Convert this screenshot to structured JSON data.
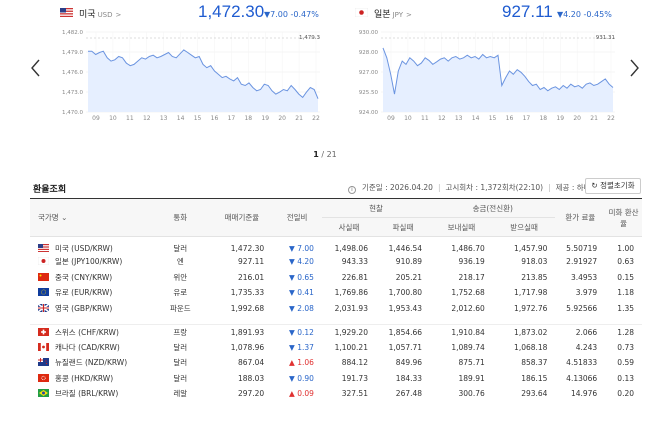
{
  "carousel": {
    "pager_current": "1",
    "pager_total": "/ 21"
  },
  "cards": [
    {
      "name": "미국",
      "code": "USD",
      "price": "1,472.30",
      "change": "▼7.00",
      "change_pct": "-0.47%",
      "y_ticks": [
        "1,482.0",
        "1,479.0",
        "1,476.0",
        "1,473.0",
        "1,470.0"
      ],
      "x_ticks": [
        "09",
        "10",
        "11",
        "12",
        "13",
        "14",
        "15",
        "16",
        "17",
        "18",
        "19",
        "20",
        "21",
        "22"
      ],
      "max_label": "1,479.3"
    },
    {
      "name": "일본",
      "code": "JPY",
      "price": "927.11",
      "change": "▼4.20",
      "change_pct": "-0.45%",
      "y_ticks": [
        "930.00",
        "928.00",
        "927.00",
        "925.50",
        "924.00"
      ],
      "x_ticks": [
        "09",
        "10",
        "11",
        "12",
        "13",
        "14",
        "15",
        "16",
        "17",
        "18",
        "19",
        "20",
        "21",
        "22"
      ],
      "max_label": "931.31"
    }
  ],
  "section": {
    "title": "환율조회",
    "base_date": "기준일 : 2026.04.20",
    "notice": "고시회차 : 1,372회차(22:10)",
    "provider": "제공 : 하나은행",
    "reset_label": "정렬초기화"
  },
  "table": {
    "headers": {
      "country": "국가명",
      "currency": "통화",
      "base_rate": "매매기준율",
      "change": "전일비",
      "cash": "현찰",
      "cash_buy": "사실때",
      "cash_sell": "파실때",
      "transfer": "송금(전신환)",
      "send": "보내실때",
      "receive": "받으실때",
      "usd_rate": "환가 료율",
      "usd_conv": "미화 환산율"
    },
    "rows": [
      {
        "name": "미국 (USD/KRW)",
        "currency": "달러",
        "base": "1,472.30",
        "change": "7.00",
        "dir": "down",
        "cash_buy": "1,498.06",
        "cash_sell": "1,446.54",
        "send": "1,486.70",
        "receive": "1,457.90",
        "fee": "5.50719",
        "usd": "1.00",
        "flag": "us"
      },
      {
        "name": "일본 (JPY100/KRW)",
        "currency": "엔",
        "base": "927.11",
        "change": "4.20",
        "dir": "down",
        "cash_buy": "943.33",
        "cash_sell": "910.89",
        "send": "936.19",
        "receive": "918.03",
        "fee": "2.91927",
        "usd": "0.63",
        "flag": "jp"
      },
      {
        "name": "중국 (CNY/KRW)",
        "currency": "위안",
        "base": "216.01",
        "change": "0.65",
        "dir": "down",
        "cash_buy": "226.81",
        "cash_sell": "205.21",
        "send": "218.17",
        "receive": "213.85",
        "fee": "3.4953",
        "usd": "0.15",
        "flag": "cn"
      },
      {
        "name": "유로 (EUR/KRW)",
        "currency": "유로",
        "base": "1,735.33",
        "change": "0.41",
        "dir": "down",
        "cash_buy": "1,769.86",
        "cash_sell": "1,700.80",
        "send": "1,752.68",
        "receive": "1,717.98",
        "fee": "3.979",
        "usd": "1.18",
        "flag": "eu"
      },
      {
        "name": "영국 (GBP/KRW)",
        "currency": "파운드",
        "base": "1,992.68",
        "change": "2.08",
        "dir": "down",
        "cash_buy": "2,031.93",
        "cash_sell": "1,953.43",
        "send": "2,012.60",
        "receive": "1,972.76",
        "fee": "5.92566",
        "usd": "1.35",
        "flag": "gb"
      },
      {
        "name": "스위스 (CHF/KRW)",
        "currency": "프랑",
        "base": "1,891.93",
        "change": "0.12",
        "dir": "down",
        "cash_buy": "1,929.20",
        "cash_sell": "1,854.66",
        "send": "1,910.84",
        "receive": "1,873.02",
        "fee": "2.066",
        "usd": "1.28",
        "flag": "ch"
      },
      {
        "name": "캐나다 (CAD/KRW)",
        "currency": "달러",
        "base": "1,078.96",
        "change": "1.37",
        "dir": "down",
        "cash_buy": "1,100.21",
        "cash_sell": "1,057.71",
        "send": "1,089.74",
        "receive": "1,068.18",
        "fee": "4.243",
        "usd": "0.73",
        "flag": "ca"
      },
      {
        "name": "뉴질랜드 (NZD/KRW)",
        "currency": "달러",
        "base": "867.04",
        "change": "1.06",
        "dir": "up",
        "cash_buy": "884.12",
        "cash_sell": "849.96",
        "send": "875.71",
        "receive": "858.37",
        "fee": "4.51833",
        "usd": "0.59",
        "flag": "nz"
      },
      {
        "name": "홍콩 (HKD/KRW)",
        "currency": "달러",
        "base": "188.03",
        "change": "0.90",
        "dir": "down",
        "cash_buy": "191.73",
        "cash_sell": "184.33",
        "send": "189.91",
        "receive": "186.15",
        "fee": "4.13066",
        "usd": "0.13",
        "flag": "hk"
      },
      {
        "name": "브라질 (BRL/KRW)",
        "currency": "레알",
        "base": "297.20",
        "change": "0.09",
        "dir": "up",
        "cash_buy": "327.51",
        "cash_sell": "267.48",
        "send": "300.76",
        "receive": "293.64",
        "fee": "14.976",
        "usd": "0.20",
        "flag": "br"
      }
    ]
  },
  "colors": {
    "accent": "#1e5bd0",
    "down": "#2a66c9",
    "up": "#e03131",
    "chart_line": "#6b94e0",
    "chart_fill": "#e6efff"
  }
}
